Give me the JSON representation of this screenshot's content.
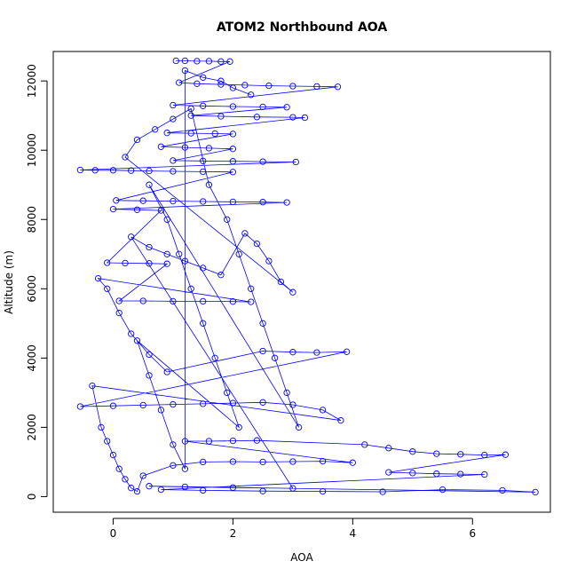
{
  "chart_data": {
    "type": "scatter",
    "title": "ATOM2 Northbound AOA",
    "xlabel": "AOA",
    "ylabel": "Altitude (m)",
    "xlim": [
      -1.0,
      7.3
    ],
    "ylim": [
      -450,
      12850
    ],
    "x_ticks": [
      0,
      2,
      4,
      6
    ],
    "y_ticks": [
      0,
      2000,
      4000,
      6000,
      8000,
      10000,
      12000
    ],
    "x_tick_labels": [
      "0",
      "2",
      "4",
      "6"
    ],
    "y_tick_labels": [
      "0",
      "2000",
      "4000",
      "6000",
      "8000",
      "10000",
      "12000"
    ],
    "grid": false,
    "legend": "none",
    "marker": "open-circle",
    "connected_with_lines": true,
    "color": "#0000ff",
    "points": [
      [
        1.05,
        12580
      ],
      [
        1.2,
        12580
      ],
      [
        1.4,
        12570
      ],
      [
        1.6,
        12570
      ],
      [
        1.8,
        12560
      ],
      [
        1.95,
        12560
      ],
      [
        1.1,
        11950
      ],
      [
        1.4,
        11920
      ],
      [
        1.8,
        11900
      ],
      [
        2.2,
        11880
      ],
      [
        2.6,
        11860
      ],
      [
        3.0,
        11850
      ],
      [
        3.4,
        11840
      ],
      [
        3.75,
        11830
      ],
      [
        1.0,
        11300
      ],
      [
        1.5,
        11280
      ],
      [
        2.0,
        11260
      ],
      [
        2.5,
        11250
      ],
      [
        2.9,
        11240
      ],
      [
        1.3,
        11000
      ],
      [
        1.8,
        10980
      ],
      [
        2.4,
        10960
      ],
      [
        3.0,
        10950
      ],
      [
        3.2,
        10940
      ],
      [
        0.9,
        10500
      ],
      [
        1.3,
        10490
      ],
      [
        1.7,
        10480
      ],
      [
        2.0,
        10470
      ],
      [
        0.8,
        10100
      ],
      [
        1.2,
        10080
      ],
      [
        1.6,
        10060
      ],
      [
        2.0,
        10040
      ],
      [
        1.0,
        9700
      ],
      [
        1.5,
        9690
      ],
      [
        2.0,
        9680
      ],
      [
        2.5,
        9670
      ],
      [
        3.05,
        9660
      ],
      [
        -0.55,
        9430
      ],
      [
        -0.3,
        9420
      ],
      [
        0.0,
        9420
      ],
      [
        0.3,
        9410
      ],
      [
        0.6,
        9400
      ],
      [
        1.0,
        9390
      ],
      [
        1.5,
        9380
      ],
      [
        2.0,
        9370
      ],
      [
        0.05,
        8550
      ],
      [
        0.5,
        8540
      ],
      [
        1.0,
        8530
      ],
      [
        1.5,
        8520
      ],
      [
        2.0,
        8510
      ],
      [
        2.5,
        8500
      ],
      [
        2.9,
        8490
      ],
      [
        0.0,
        8300
      ],
      [
        0.4,
        8280
      ],
      [
        0.8,
        8260
      ],
      [
        -0.1,
        6750
      ],
      [
        0.2,
        6740
      ],
      [
        0.6,
        6730
      ],
      [
        0.9,
        6720
      ],
      [
        0.1,
        5650
      ],
      [
        0.5,
        5650
      ],
      [
        1.0,
        5640
      ],
      [
        1.5,
        5640
      ],
      [
        2.0,
        5630
      ],
      [
        2.3,
        5620
      ],
      [
        -0.25,
        6300
      ],
      [
        -0.1,
        6000
      ],
      [
        0.1,
        5300
      ],
      [
        0.3,
        4700
      ],
      [
        0.6,
        4100
      ],
      [
        0.9,
        3600
      ],
      [
        2.5,
        4200
      ],
      [
        3.0,
        4170
      ],
      [
        3.4,
        4160
      ],
      [
        3.9,
        4180
      ],
      [
        -0.55,
        2600
      ],
      [
        0.0,
        2620
      ],
      [
        0.5,
        2640
      ],
      [
        1.0,
        2660
      ],
      [
        1.5,
        2680
      ],
      [
        2.0,
        2700
      ],
      [
        2.5,
        2720
      ],
      [
        3.0,
        2650
      ],
      [
        3.5,
        2500
      ],
      [
        3.8,
        2200
      ],
      [
        -0.35,
        3200
      ],
      [
        -0.2,
        2000
      ],
      [
        -0.1,
        1600
      ],
      [
        0.0,
        1200
      ],
      [
        0.1,
        800
      ],
      [
        0.2,
        500
      ],
      [
        0.3,
        250
      ],
      [
        0.4,
        150
      ],
      [
        0.5,
        600
      ],
      [
        1.0,
        900
      ],
      [
        1.5,
        1000
      ],
      [
        2.0,
        1010
      ],
      [
        2.5,
        1000
      ],
      [
        3.0,
        1010
      ],
      [
        3.5,
        1020
      ],
      [
        4.0,
        980
      ],
      [
        1.2,
        1600
      ],
      [
        1.6,
        1600
      ],
      [
        2.0,
        1610
      ],
      [
        2.4,
        1620
      ],
      [
        4.2,
        1500
      ],
      [
        4.6,
        1400
      ],
      [
        5.0,
        1300
      ],
      [
        5.4,
        1240
      ],
      [
        5.8,
        1220
      ],
      [
        6.2,
        1200
      ],
      [
        6.55,
        1210
      ],
      [
        4.6,
        700
      ],
      [
        5.0,
        680
      ],
      [
        5.4,
        660
      ],
      [
        5.8,
        650
      ],
      [
        6.2,
        640
      ],
      [
        0.8,
        200
      ],
      [
        1.5,
        180
      ],
      [
        2.5,
        160
      ],
      [
        3.5,
        150
      ],
      [
        4.5,
        140
      ],
      [
        5.5,
        200
      ],
      [
        6.5,
        180
      ],
      [
        7.05,
        130
      ],
      [
        0.6,
        300
      ],
      [
        1.2,
        280
      ],
      [
        2.0,
        260
      ],
      [
        3.0,
        240
      ],
      [
        0.3,
        7500
      ],
      [
        0.6,
        7200
      ],
      [
        0.9,
        7000
      ],
      [
        1.2,
        6800
      ],
      [
        1.5,
        6600
      ],
      [
        1.8,
        6400
      ],
      [
        2.2,
        7600
      ],
      [
        2.4,
        7300
      ],
      [
        2.6,
        6800
      ],
      [
        2.8,
        6200
      ],
      [
        3.0,
        5900
      ],
      [
        0.2,
        9800
      ],
      [
        0.4,
        10300
      ],
      [
        0.7,
        10600
      ],
      [
        1.0,
        10900
      ],
      [
        1.3,
        11200
      ],
      [
        1.6,
        9000
      ],
      [
        1.9,
        8000
      ],
      [
        2.1,
        7000
      ],
      [
        2.3,
        6000
      ],
      [
        2.5,
        5000
      ],
      [
        2.7,
        4000
      ],
      [
        2.9,
        3000
      ],
      [
        3.1,
        2000
      ],
      [
        0.6,
        9000
      ],
      [
        0.9,
        8000
      ],
      [
        1.1,
        7000
      ],
      [
        1.3,
        6000
      ],
      [
        1.5,
        5000
      ],
      [
        1.7,
        4000
      ],
      [
        1.9,
        3000
      ],
      [
        2.1,
        2000
      ],
      [
        0.4,
        4500
      ],
      [
        0.6,
        3500
      ],
      [
        0.8,
        2500
      ],
      [
        1.0,
        1500
      ],
      [
        1.2,
        800
      ],
      [
        1.2,
        12300
      ],
      [
        1.5,
        12100
      ],
      [
        1.8,
        12000
      ],
      [
        2.0,
        11800
      ],
      [
        2.3,
        11600
      ]
    ]
  }
}
